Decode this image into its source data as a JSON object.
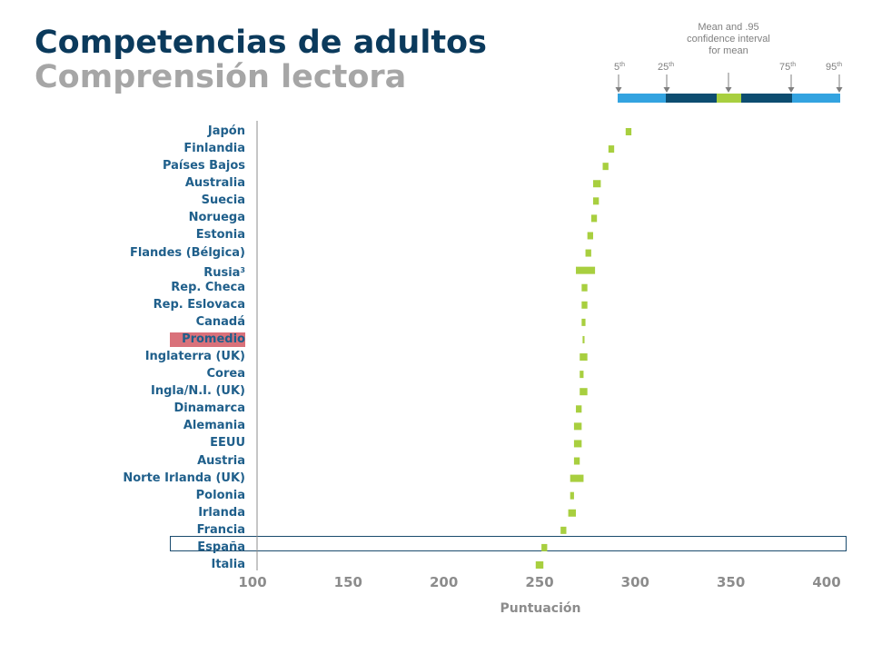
{
  "chart_data": {
    "type": "dot-interval",
    "title": "Competencias de adultos",
    "subtitle": "Comprensión lectora",
    "xlabel": "Puntuación",
    "xlim": [
      100,
      400
    ],
    "xticks": [
      "100",
      "150",
      "200",
      "250",
      "300",
      "350",
      "400"
    ],
    "legend": {
      "caption": "Mean and .95 confidence interval for mean",
      "percentiles": [
        "5",
        "25",
        "75",
        "95"
      ],
      "suffix": "th",
      "colors": {
        "outer": "#33a3e0",
        "inner": "#0d4d70",
        "mean": "#a8cf3f"
      }
    },
    "highlight": {
      "Promedio": "#d9717a",
      "España": "#1a4b6e"
    },
    "bar_color": "#a8cf3f",
    "categories": [
      {
        "name": "Japón",
        "sup": "",
        "low": 295,
        "high": 298
      },
      {
        "name": "Finlandia",
        "sup": "",
        "low": 286,
        "high": 289
      },
      {
        "name": "Países Bajos",
        "sup": "",
        "low": 283,
        "high": 286
      },
      {
        "name": "Australia",
        "sup": "",
        "low": 278,
        "high": 282
      },
      {
        "name": "Suecia",
        "sup": "",
        "low": 278,
        "high": 281
      },
      {
        "name": "Noruega",
        "sup": "",
        "low": 277,
        "high": 280
      },
      {
        "name": "Estonia",
        "sup": "",
        "low": 275,
        "high": 278
      },
      {
        "name": "Flandes (Bélgica)",
        "sup": "",
        "low": 274,
        "high": 277
      },
      {
        "name": "Rusia",
        "sup": "3",
        "low": 269,
        "high": 279
      },
      {
        "name": "Rep. Checa",
        "sup": "",
        "low": 272,
        "high": 275
      },
      {
        "name": "Rep. Eslovaca",
        "sup": "",
        "low": 272,
        "high": 275
      },
      {
        "name": "Canadá",
        "sup": "",
        "low": 272,
        "high": 274
      },
      {
        "name": "Promedio",
        "sup": "",
        "low": 272.5,
        "high": 273.5
      },
      {
        "name": "Inglaterra (UK)",
        "sup": "",
        "low": 271,
        "high": 275
      },
      {
        "name": "Corea",
        "sup": "",
        "low": 271,
        "high": 273
      },
      {
        "name": "Ingla/N.I. (UK)",
        "sup": "",
        "low": 271,
        "high": 275
      },
      {
        "name": "Dinamarca",
        "sup": "",
        "low": 269,
        "high": 272
      },
      {
        "name": "Alemania",
        "sup": "",
        "low": 268,
        "high": 272
      },
      {
        "name": "EEUU",
        "sup": "",
        "low": 268,
        "high": 272
      },
      {
        "name": "Austria",
        "sup": "",
        "low": 268,
        "high": 271
      },
      {
        "name": "Norte Irlanda (UK)",
        "sup": "",
        "low": 266,
        "high": 273
      },
      {
        "name": "Polonia",
        "sup": "",
        "low": 266,
        "high": 268
      },
      {
        "name": "Irlanda",
        "sup": "",
        "low": 265,
        "high": 269
      },
      {
        "name": "Francia",
        "sup": "",
        "low": 261,
        "high": 264
      },
      {
        "name": "España",
        "sup": "",
        "low": 251,
        "high": 254
      },
      {
        "name": "Italia",
        "sup": "",
        "low": 248,
        "high": 252
      }
    ]
  }
}
